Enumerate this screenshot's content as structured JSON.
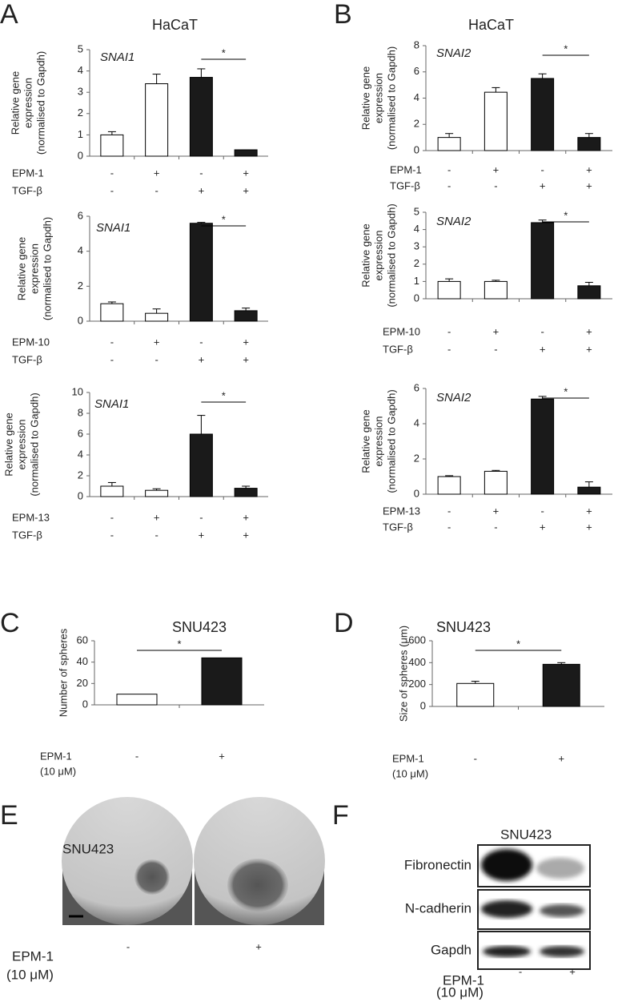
{
  "panels": {
    "letters": [
      "A",
      "B",
      "C",
      "D",
      "E",
      "F"
    ],
    "cell_lines": [
      "HaCaT",
      "HaCaT",
      "SNU423",
      "SNU423",
      "SNU423",
      "SNU423"
    ]
  },
  "chart_data": [
    {
      "type": "bar",
      "gene": "SNAI1",
      "ylabel": [
        "Relative gene",
        "expression",
        "(normalised to Gapdh)"
      ],
      "values": [
        1.0,
        3.4,
        3.7,
        0.3
      ],
      "errors": [
        0.15,
        0.45,
        0.4,
        0.0
      ],
      "colors": [
        "#ffffff",
        "#ffffff",
        "#1a1a1a",
        "#1a1a1a"
      ],
      "ylim": [
        0,
        5
      ],
      "yticks": [
        0,
        1,
        2,
        3,
        4,
        5
      ],
      "treatments": [
        {
          "name": "EPM-1",
          "marks": [
            "-",
            "+",
            "-",
            "+"
          ]
        },
        {
          "name": "TGF-β",
          "marks": [
            "-",
            "-",
            "+",
            "+"
          ]
        }
      ],
      "significance": {
        "from": 2,
        "to": 3,
        "label": "*"
      }
    },
    {
      "type": "bar",
      "gene": "SNAI1",
      "ylabel": [
        "Relative gene",
        "expression",
        "(normalised to Gapdh)"
      ],
      "values": [
        1.0,
        0.45,
        5.6,
        0.6
      ],
      "errors": [
        0.1,
        0.25,
        0.05,
        0.15
      ],
      "colors": [
        "#ffffff",
        "#ffffff",
        "#1a1a1a",
        "#1a1a1a"
      ],
      "ylim": [
        0,
        6
      ],
      "yticks": [
        0,
        2,
        4,
        6
      ],
      "treatments": [
        {
          "name": "EPM-10",
          "marks": [
            "-",
            "+",
            "-",
            "+"
          ]
        },
        {
          "name": "TGF-β",
          "marks": [
            "-",
            "-",
            "+",
            "+"
          ]
        }
      ],
      "significance": {
        "from": 2,
        "to": 3,
        "label": "*"
      }
    },
    {
      "type": "bar",
      "gene": "SNAI1",
      "ylabel": [
        "Relative gene",
        "expression",
        "(normalised to Gapdh)"
      ],
      "values": [
        1.0,
        0.6,
        6.0,
        0.8
      ],
      "errors": [
        0.35,
        0.15,
        1.8,
        0.2
      ],
      "colors": [
        "#ffffff",
        "#ffffff",
        "#1a1a1a",
        "#1a1a1a"
      ],
      "ylim": [
        0,
        10
      ],
      "yticks": [
        0,
        2,
        4,
        6,
        8,
        10
      ],
      "treatments": [
        {
          "name": "EPM-13",
          "marks": [
            "-",
            "+",
            "-",
            "+"
          ]
        },
        {
          "name": "TGF-β",
          "marks": [
            "-",
            "-",
            "+",
            "+"
          ]
        }
      ],
      "significance": {
        "from": 2,
        "to": 3,
        "label": "*"
      }
    },
    {
      "type": "bar",
      "gene": "SNAI2",
      "ylabel": [
        "Relative gene",
        "expression",
        "(normalised to Gapdh)"
      ],
      "values": [
        1.0,
        4.45,
        5.5,
        1.0
      ],
      "errors": [
        0.3,
        0.35,
        0.35,
        0.3
      ],
      "colors": [
        "#ffffff",
        "#ffffff",
        "#1a1a1a",
        "#1a1a1a"
      ],
      "ylim": [
        0,
        8
      ],
      "yticks": [
        0,
        2,
        4,
        6,
        8
      ],
      "treatments": [
        {
          "name": "EPM-1",
          "marks": [
            "-",
            "+",
            "-",
            "+"
          ]
        },
        {
          "name": "TGF-β",
          "marks": [
            "-",
            "-",
            "+",
            "+"
          ]
        }
      ],
      "significance": {
        "from": 2,
        "to": 3,
        "label": "*"
      }
    },
    {
      "type": "bar",
      "gene": "SNAI2",
      "ylabel": [
        "Relative gene",
        "expression",
        "(normalised to Gapdh)"
      ],
      "values": [
        1.0,
        1.0,
        4.4,
        0.75
      ],
      "errors": [
        0.15,
        0.07,
        0.15,
        0.2
      ],
      "colors": [
        "#ffffff",
        "#ffffff",
        "#1a1a1a",
        "#1a1a1a"
      ],
      "ylim": [
        0,
        5
      ],
      "yticks": [
        0,
        1,
        2,
        3,
        4,
        5
      ],
      "treatments": [
        {
          "name": "EPM-10",
          "marks": [
            "-",
            "+",
            "-",
            "+"
          ]
        },
        {
          "name": "TGF-β",
          "marks": [
            "-",
            "-",
            "+",
            "+"
          ]
        }
      ],
      "significance": {
        "from": 2,
        "to": 3,
        "label": "*"
      }
    },
    {
      "type": "bar",
      "gene": "SNAI2",
      "ylabel": [
        "Relative gene",
        "expression",
        "(normalised to Gapdh)"
      ],
      "values": [
        1.0,
        1.3,
        5.4,
        0.4
      ],
      "errors": [
        0.05,
        0.05,
        0.15,
        0.3
      ],
      "colors": [
        "#ffffff",
        "#ffffff",
        "#1a1a1a",
        "#1a1a1a"
      ],
      "ylim": [
        0,
        6
      ],
      "yticks": [
        0,
        2,
        4,
        6
      ],
      "treatments": [
        {
          "name": "EPM-13",
          "marks": [
            "-",
            "+",
            "-",
            "+"
          ]
        },
        {
          "name": "TGF-β",
          "marks": [
            "-",
            "-",
            "+",
            "+"
          ]
        }
      ],
      "significance": {
        "from": 2,
        "to": 3,
        "label": "*"
      }
    },
    {
      "type": "bar",
      "ylabel": [
        "Number of spheres"
      ],
      "values": [
        10,
        44
      ],
      "colors": [
        "#ffffff",
        "#1a1a1a"
      ],
      "ylim": [
        0,
        60
      ],
      "yticks": [
        0,
        20,
        40,
        60
      ],
      "treatments": [
        {
          "name": "EPM-1",
          "note": "(10 μM)",
          "marks": [
            "-",
            "+"
          ]
        }
      ],
      "significance": {
        "from": 0,
        "to": 1,
        "label": "*"
      }
    },
    {
      "type": "bar",
      "ylabel": [
        "Size of spheres (μm)"
      ],
      "values": [
        210,
        385
      ],
      "errors": [
        20,
        15
      ],
      "colors": [
        "#ffffff",
        "#1a1a1a"
      ],
      "ylim": [
        0,
        600
      ],
      "yticks": [
        0,
        200,
        400,
        600
      ],
      "treatments": [
        {
          "name": "EPM-1",
          "note": "(10 μM)",
          "marks": [
            "-",
            "+"
          ]
        }
      ],
      "significance": {
        "from": 0,
        "to": 1,
        "label": "*"
      }
    }
  ],
  "figure_e": {
    "treatment": "EPM-1",
    "note": "(10 μM)",
    "marks": [
      "-",
      "+"
    ]
  },
  "figure_f": {
    "proteins": [
      "Fibronectin",
      "N-cadherin",
      "Gapdh"
    ],
    "treatment": "EPM-1",
    "note": "(10 μM)",
    "marks": [
      "-",
      "+"
    ]
  }
}
